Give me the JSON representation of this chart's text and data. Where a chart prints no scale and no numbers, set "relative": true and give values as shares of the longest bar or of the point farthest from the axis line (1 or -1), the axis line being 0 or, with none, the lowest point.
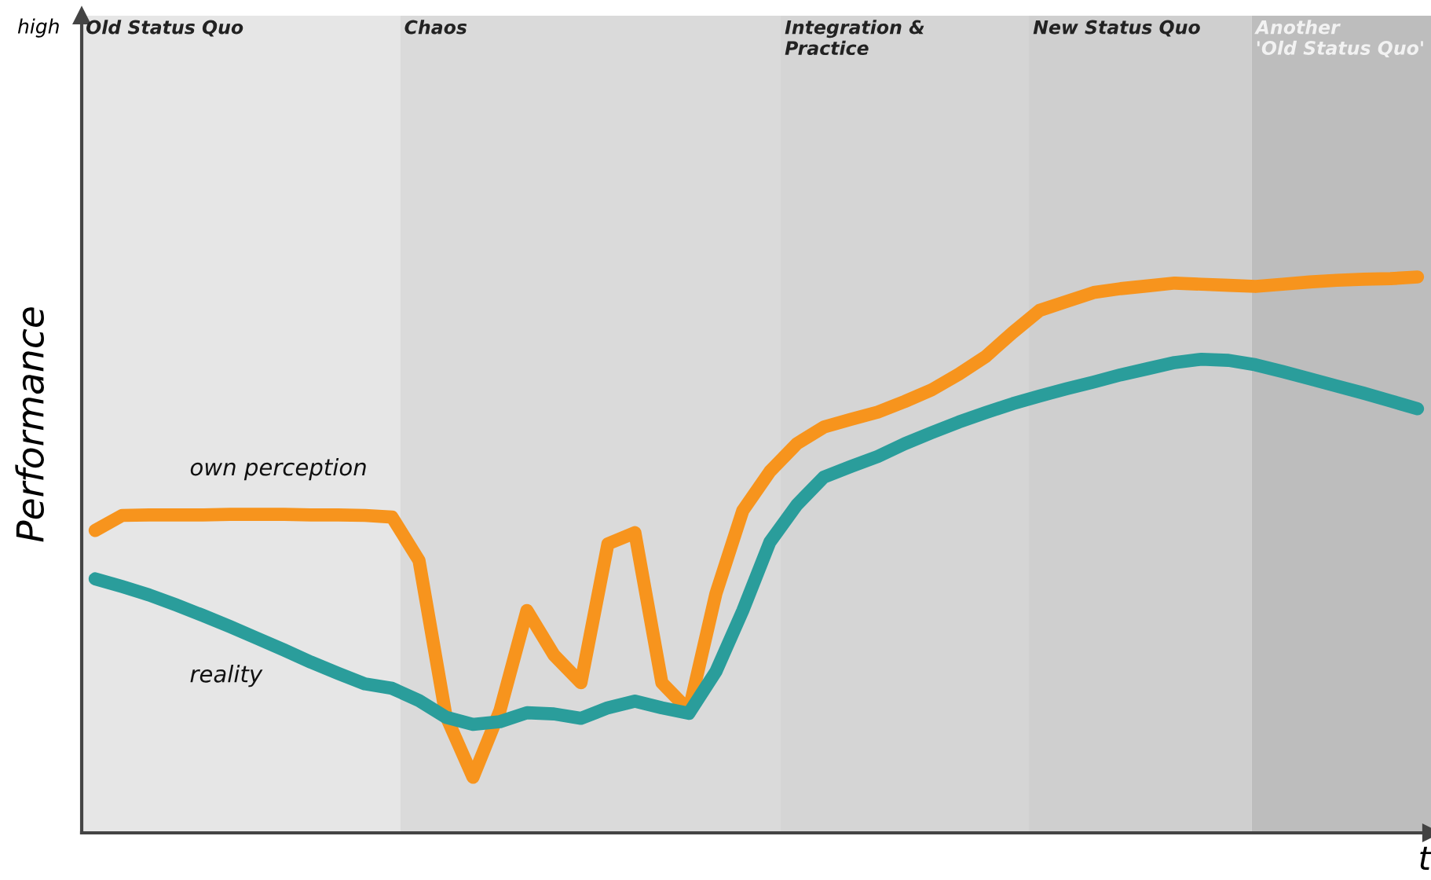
{
  "chart_data": {
    "type": "line",
    "relative": true,
    "xlabel": "t",
    "ylabel": "Performance",
    "annotations": [
      "high",
      "Old Status Quo",
      "Chaos",
      "Integration &\nPractice",
      "New Status Quo",
      "Another\n'Old Status Quo'"
    ],
    "legend": false,
    "line_style": "solid",
    "marker": "none",
    "categories": [
      null,
      null,
      null,
      null,
      null,
      null,
      null,
      null,
      null,
      null,
      null,
      null,
      null,
      null,
      null,
      null,
      null,
      null,
      null,
      null,
      null,
      null,
      null,
      null,
      null,
      null,
      null,
      null,
      null,
      null,
      null,
      null,
      null,
      null,
      null,
      null,
      null,
      null,
      null,
      null,
      null,
      null,
      null,
      null,
      null,
      null,
      null,
      null,
      null,
      null
    ],
    "series": [
      {
        "name": "own perception",
        "color": "#f7941d",
        "values": [
          0.544,
          0.571,
          0.572,
          0.572,
          0.572,
          0.573,
          0.573,
          0.573,
          0.572,
          0.572,
          0.571,
          0.568,
          0.49,
          0.21,
          0.1,
          0.22,
          0.4,
          0.32,
          0.27,
          0.52,
          0.54,
          0.27,
          0.22,
          0.43,
          0.58,
          0.65,
          0.7,
          0.73,
          0.744,
          0.757,
          0.776,
          0.797,
          0.825,
          0.857,
          0.9,
          0.94,
          0.956,
          0.972,
          0.979,
          0.984,
          0.989,
          0.987,
          0.985,
          0.983,
          0.987,
          0.991,
          0.994,
          0.996,
          0.997,
          1.0
        ]
      },
      {
        "name": "reality",
        "color": "#2a9d9b",
        "values": [
          0.457,
          0.443,
          0.428,
          0.41,
          0.391,
          0.371,
          0.35,
          0.329,
          0.307,
          0.287,
          0.268,
          0.26,
          0.238,
          0.208,
          0.195,
          0.2,
          0.216,
          0.214,
          0.206,
          0.225,
          0.237,
          0.225,
          0.215,
          0.29,
          0.4,
          0.523,
          0.59,
          0.64,
          0.659,
          0.677,
          0.7,
          0.72,
          0.739,
          0.756,
          0.772,
          0.786,
          0.799,
          0.811,
          0.824,
          0.835,
          0.846,
          0.852,
          0.85,
          0.842,
          0.83,
          0.817,
          0.804,
          0.791,
          0.777,
          0.763
        ]
      }
    ]
  }
}
